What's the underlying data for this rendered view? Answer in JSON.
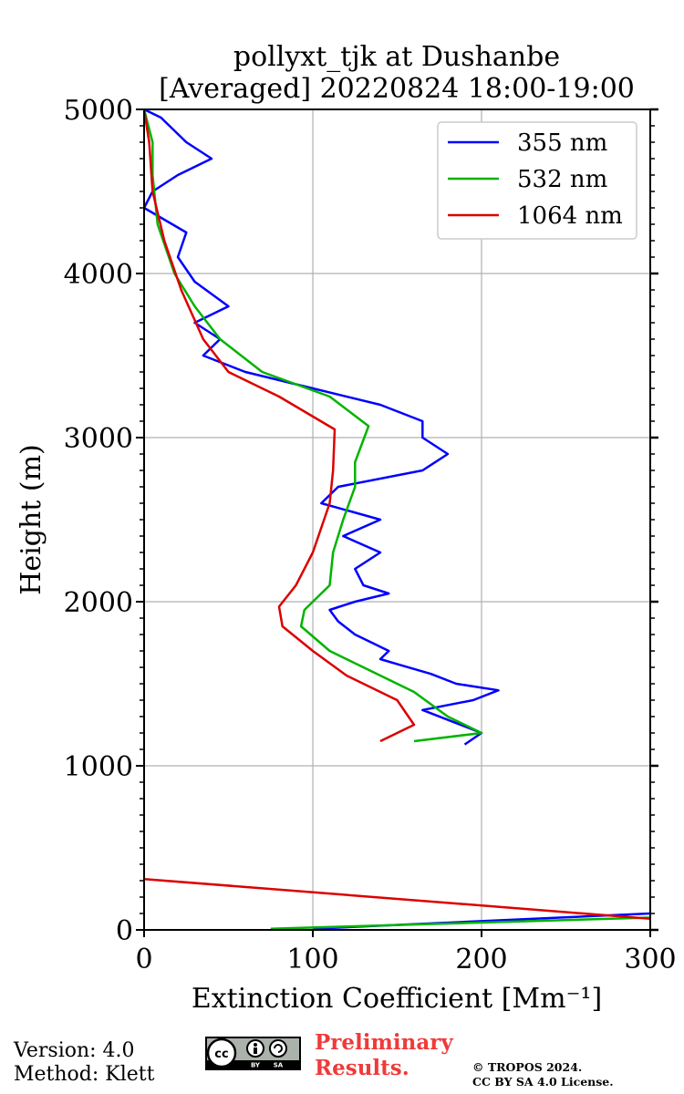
{
  "chart_data": {
    "type": "line",
    "title": "pollyxt_tjk at Dushanbe",
    "subtitle": "[Averaged] 20220824 18:00-19:00",
    "xlabel": "Extinction Coefficient [Mm⁻¹]",
    "ylabel": "Height (m)",
    "xlim": [
      0,
      300
    ],
    "ylim": [
      0,
      5000
    ],
    "xticks": [
      0,
      100,
      200,
      300
    ],
    "yticks": [
      0,
      1000,
      2000,
      3000,
      4000,
      5000
    ],
    "grid": true,
    "legend_position": "top-right",
    "series": [
      {
        "name": "355 nm",
        "color": "#0000ff",
        "points": [
          [
            100,
            7
          ],
          [
            300,
            100
          ],
          [
            190,
            1130
          ],
          [
            200,
            1200
          ],
          [
            185,
            1260
          ],
          [
            165,
            1340
          ],
          [
            195,
            1400
          ],
          [
            210,
            1460
          ],
          [
            185,
            1500
          ],
          [
            170,
            1560
          ],
          [
            150,
            1620
          ],
          [
            140,
            1650
          ],
          [
            145,
            1700
          ],
          [
            125,
            1800
          ],
          [
            115,
            1880
          ],
          [
            110,
            1950
          ],
          [
            125,
            2000
          ],
          [
            145,
            2050
          ],
          [
            130,
            2100
          ],
          [
            125,
            2200
          ],
          [
            140,
            2300
          ],
          [
            118,
            2400
          ],
          [
            140,
            2500
          ],
          [
            105,
            2600
          ],
          [
            115,
            2700
          ],
          [
            165,
            2800
          ],
          [
            180,
            2900
          ],
          [
            165,
            3000
          ],
          [
            165,
            3100
          ],
          [
            140,
            3200
          ],
          [
            100,
            3300
          ],
          [
            60,
            3400
          ],
          [
            35,
            3500
          ],
          [
            45,
            3600
          ],
          [
            30,
            3700
          ],
          [
            50,
            3800
          ],
          [
            30,
            3950
          ],
          [
            20,
            4100
          ],
          [
            25,
            4250
          ],
          [
            0,
            4400
          ],
          [
            5,
            4500
          ],
          [
            20,
            4600
          ],
          [
            40,
            4700
          ],
          [
            25,
            4800
          ],
          [
            10,
            4950
          ],
          [
            0,
            5000
          ]
        ]
      },
      {
        "name": "532 nm",
        "color": "#00b400",
        "points": [
          [
            75,
            7
          ],
          [
            300,
            75
          ],
          [
            160,
            1150
          ],
          [
            200,
            1200
          ],
          [
            180,
            1300
          ],
          [
            160,
            1450
          ],
          [
            140,
            1550
          ],
          [
            110,
            1700
          ],
          [
            93,
            1850
          ],
          [
            95,
            1950
          ],
          [
            110,
            2100
          ],
          [
            112,
            2300
          ],
          [
            118,
            2500
          ],
          [
            125,
            2700
          ],
          [
            125,
            2850
          ],
          [
            133,
            3070
          ],
          [
            110,
            3250
          ],
          [
            70,
            3400
          ],
          [
            45,
            3600
          ],
          [
            30,
            3800
          ],
          [
            18,
            4000
          ],
          [
            8,
            4300
          ],
          [
            5,
            4600
          ],
          [
            5,
            4800
          ],
          [
            0,
            5000
          ]
        ]
      },
      {
        "name": "1064 nm",
        "color": "#dc0000",
        "points": [
          [
            310,
            60
          ],
          [
            0,
            310
          ],
          [
            140,
            1150
          ],
          [
            160,
            1250
          ],
          [
            150,
            1400
          ],
          [
            120,
            1550
          ],
          [
            100,
            1700
          ],
          [
            82,
            1850
          ],
          [
            80,
            1970
          ],
          [
            90,
            2100
          ],
          [
            100,
            2300
          ],
          [
            110,
            2600
          ],
          [
            112,
            2800
          ],
          [
            113,
            3050
          ],
          [
            80,
            3250
          ],
          [
            50,
            3400
          ],
          [
            35,
            3600
          ],
          [
            22,
            3900
          ],
          [
            12,
            4200
          ],
          [
            5,
            4500
          ],
          [
            3,
            4800
          ],
          [
            0,
            5000
          ]
        ]
      }
    ]
  },
  "footer": {
    "version": "Version: 4.0",
    "method": "Method: Klett",
    "preliminary_line1": "Preliminary",
    "preliminary_line2": "Results.",
    "copyright_line1": "© TROPOS 2024.",
    "copyright_line2": "CC BY SA 4.0 License."
  }
}
